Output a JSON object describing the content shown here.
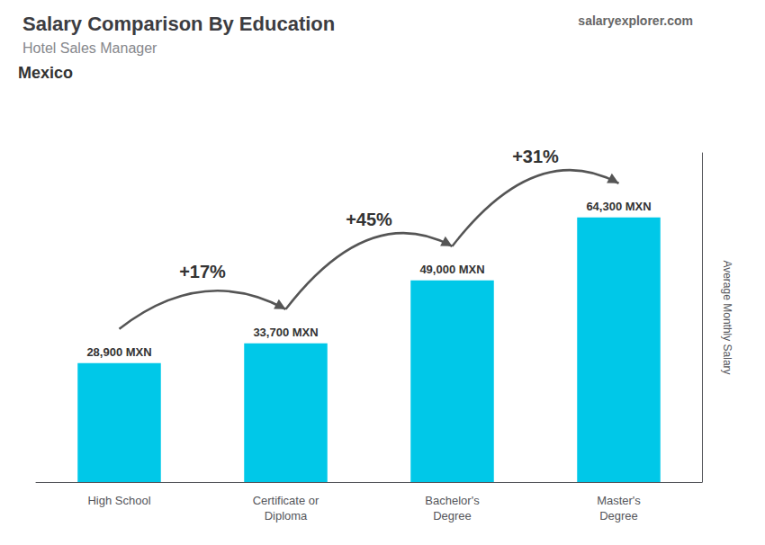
{
  "chart_data": {
    "type": "bar",
    "title": "Salary Comparison By Education",
    "subtitle": "Hotel Sales Manager",
    "ylabel": "Average Monthly Salary",
    "categories": [
      "High School",
      "Certificate or\nDiploma",
      "Bachelor's\nDegree",
      "Master's\nDegree"
    ],
    "values": [
      28900,
      33700,
      49000,
      64300
    ],
    "value_labels": [
      "28,900 MXN",
      "33,700 MXN",
      "49,000 MXN",
      "64,300 MXN"
    ],
    "data_labels": true,
    "color": "#00c8e8",
    "ylim": [
      0,
      80000
    ],
    "tick_labels": "x",
    "grid": false,
    "annotations": [
      {
        "text": "Mexico"
      },
      {
        "text": "salaryexplorer.com"
      },
      {
        "text": "+17%",
        "from": "High School",
        "to": "Certificate or\nDiploma"
      },
      {
        "text": "+45%",
        "from": "Certificate or\nDiploma",
        "to": "Bachelor's\nDegree"
      },
      {
        "text": "+31%",
        "from": "Bachelor's\nDegree",
        "to": "Master's\nDegree"
      }
    ]
  }
}
